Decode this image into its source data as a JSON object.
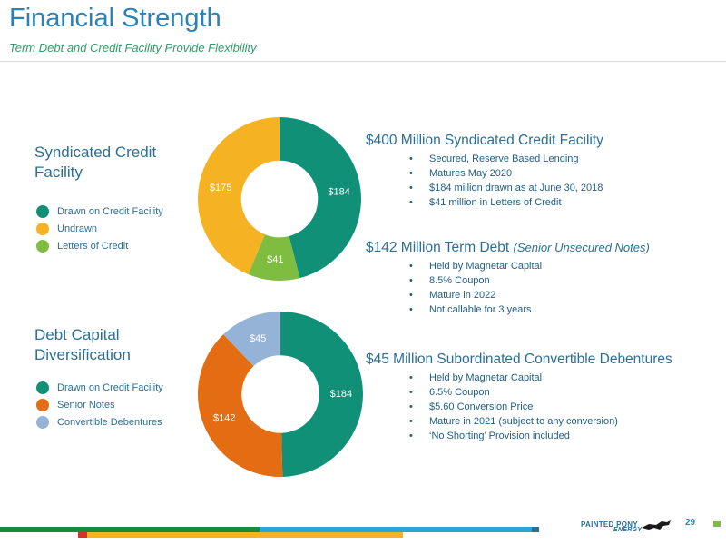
{
  "header": {
    "title": "Financial Strength",
    "subtitle": "Term Debt and Credit Facility Provide Flexibility"
  },
  "chart_data": [
    {
      "type": "pie",
      "donut": true,
      "title": "Syndicated Credit Facility",
      "categories": [
        "Drawn on Credit Facility",
        "Letters of Credit",
        "Undrawn"
      ],
      "values": [
        184,
        41,
        175
      ],
      "labels": [
        "$184",
        "$41",
        "$175"
      ],
      "colors": [
        "#119078",
        "#7fbd41",
        "#f5b324"
      ],
      "legend": [
        {
          "label": "Drawn on Credit Facility",
          "color": "#119078"
        },
        {
          "label": "Undrawn",
          "color": "#f5b324"
        },
        {
          "label": "Letters of Credit",
          "color": "#7fbd41"
        }
      ],
      "legend_position": "left"
    },
    {
      "type": "pie",
      "donut": true,
      "title": "Debt Capital Diversification",
      "categories": [
        "Drawn on Credit Facility",
        "Senior Notes",
        "Convertible Debentures"
      ],
      "values": [
        184,
        142,
        45
      ],
      "labels": [
        "$184",
        "$142",
        "$45"
      ],
      "colors": [
        "#119078",
        "#e46c13",
        "#94b3d6"
      ],
      "legend": [
        {
          "label": "Drawn on Credit Facility",
          "color": "#119078"
        },
        {
          "label": "Senior Notes",
          "color": "#e46c13"
        },
        {
          "label": "Convertible Debentures",
          "color": "#94b3d6"
        }
      ],
      "legend_position": "left"
    }
  ],
  "facility": {
    "heading": "$400 Million Syndicated Credit Facility",
    "bullets": [
      "Secured, Reserve Based Lending",
      "Matures May 2020",
      "$184 million drawn as at June 30, 2018",
      "$41 million in Letters of Credit"
    ]
  },
  "term_debt": {
    "heading": "$142 Million Term Debt ",
    "heading_note": "(Senior Unsecured Notes)",
    "bullets": [
      "Held by Magnetar Capital",
      "8.5% Coupon",
      "Mature in 2022",
      "Not callable for 3 years"
    ]
  },
  "debentures": {
    "heading": "$45 Million Subordinated Convertible Debentures",
    "bullets": [
      "Held by Magnetar Capital",
      "6.5% Coupon",
      "$5.60 Conversion Price",
      "Mature in 2021 (subject to any conversion)",
      "‘No Shorting’ Provision included"
    ]
  },
  "footer": {
    "logo_text": "PAINTED PONY",
    "logo_subtext": "ENERGY",
    "page_number": "29",
    "bar_colors": [
      "#1b8a3c",
      "#f5b324",
      "#2aa5d8",
      "#d8302a",
      "#2b6f96"
    ]
  }
}
